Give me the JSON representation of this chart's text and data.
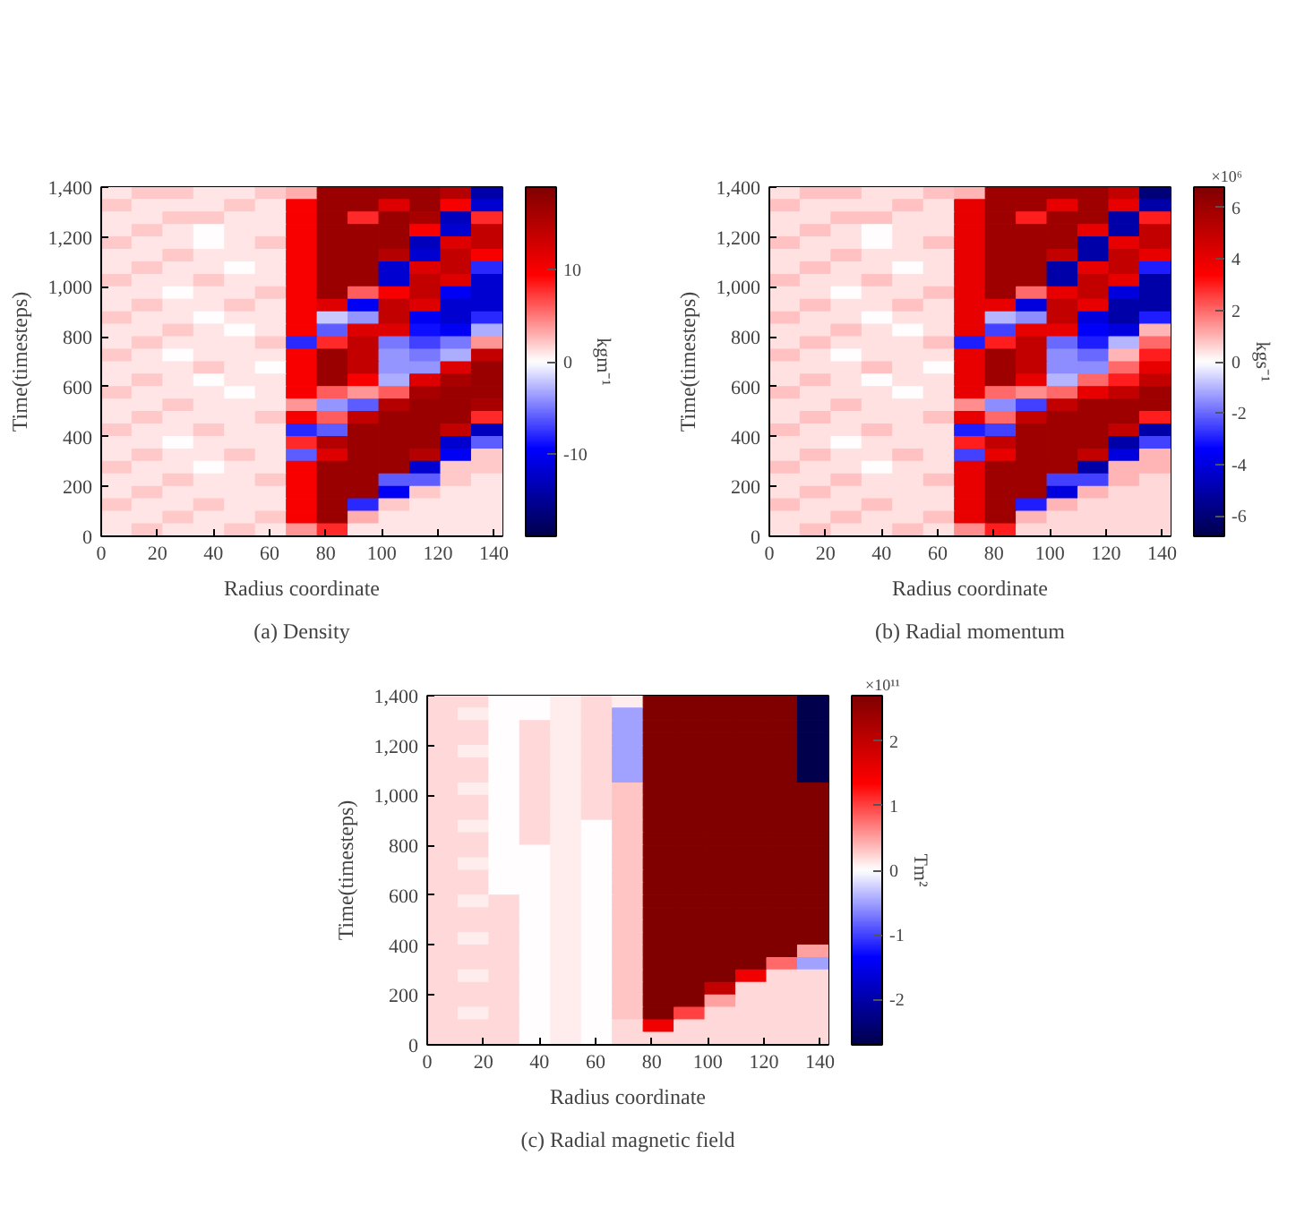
{
  "chart_data": [
    {
      "type": "heatmap",
      "title": "(a) Density",
      "xlabel": "Radius coordinate",
      "ylabel": "Time(timesteps)",
      "clabel": "kgm⁻¹",
      "xlim": [
        0,
        143
      ],
      "xticks": [
        0,
        20,
        40,
        60,
        80,
        100,
        120,
        140
      ],
      "ylim": [
        0,
        1400
      ],
      "yticks": [
        0,
        200,
        400,
        600,
        800,
        {
          "value": 1000,
          "label": "1,000"
        },
        {
          "value": 1200,
          "label": "1,200"
        },
        {
          "value": 1400,
          "label": "1,400"
        }
      ],
      "clim": [
        -19,
        19
      ],
      "cticks": [
        -10,
        0,
        10
      ],
      "cells": [
        [
          1,
          2,
          2,
          1,
          1,
          2,
          3,
          17,
          17,
          17,
          17,
          15,
          -14
        ],
        [
          2,
          1,
          1,
          1,
          2,
          1,
          10,
          17,
          17,
          12,
          17,
          10,
          -12
        ],
        [
          1,
          1,
          2,
          2,
          1,
          1,
          10,
          17,
          8,
          17,
          16,
          -13,
          8
        ],
        [
          1,
          2,
          1,
          0,
          1,
          1,
          10,
          17,
          17,
          17,
          10,
          -12,
          14
        ],
        [
          2,
          1,
          1,
          0,
          1,
          2,
          10,
          17,
          17,
          17,
          -13,
          12,
          14
        ],
        [
          1,
          1,
          2,
          1,
          1,
          1,
          10,
          17,
          17,
          15,
          -12,
          14,
          10
        ],
        [
          1,
          2,
          1,
          1,
          0,
          1,
          10,
          17,
          17,
          -12,
          12,
          14,
          -8
        ],
        [
          2,
          1,
          1,
          2,
          1,
          1,
          10,
          17,
          17,
          -12,
          14,
          12,
          -12
        ],
        [
          1,
          1,
          0,
          1,
          1,
          2,
          10,
          17,
          6,
          10,
          14,
          -10,
          -12
        ],
        [
          1,
          2,
          1,
          1,
          2,
          1,
          10,
          12,
          -10,
          14,
          12,
          -12,
          -12
        ],
        [
          2,
          1,
          1,
          0,
          1,
          1,
          10,
          -2,
          -4,
          14,
          -10,
          -12,
          -8
        ],
        [
          1,
          1,
          2,
          1,
          0,
          1,
          10,
          -6,
          12,
          12,
          -9,
          -10,
          -3
        ],
        [
          1,
          2,
          1,
          1,
          1,
          2,
          -8,
          8,
          14,
          -5,
          -7,
          -5,
          4
        ],
        [
          2,
          1,
          0,
          1,
          1,
          1,
          10,
          17,
          14,
          -4,
          -5,
          -3,
          14
        ],
        [
          1,
          1,
          1,
          2,
          1,
          0,
          10,
          17,
          14,
          -4,
          -4,
          12,
          17
        ],
        [
          1,
          2,
          1,
          0,
          1,
          1,
          10,
          17,
          10,
          -3,
          12,
          16,
          17
        ],
        [
          2,
          1,
          1,
          1,
          0,
          1,
          10,
          6,
          4,
          6,
          16,
          17,
          17
        ],
        [
          1,
          1,
          2,
          1,
          1,
          1,
          4,
          -4,
          -6,
          15,
          17,
          17,
          16
        ],
        [
          1,
          2,
          1,
          1,
          1,
          2,
          10,
          6,
          14,
          17,
          17,
          17,
          8
        ],
        [
          2,
          1,
          1,
          2,
          1,
          1,
          -8,
          -6,
          17,
          17,
          17,
          14,
          -13
        ],
        [
          1,
          1,
          0,
          1,
          1,
          1,
          8,
          15,
          17,
          17,
          17,
          -12,
          -6
        ],
        [
          1,
          2,
          1,
          1,
          2,
          1,
          -6,
          12,
          17,
          17,
          15,
          -10,
          2
        ],
        [
          2,
          1,
          1,
          0,
          1,
          1,
          10,
          17,
          17,
          17,
          -12,
          2,
          2
        ],
        [
          1,
          1,
          2,
          1,
          1,
          2,
          10,
          17,
          17,
          -6,
          -6,
          2,
          1
        ],
        [
          1,
          2,
          1,
          1,
          1,
          1,
          10,
          17,
          17,
          -10,
          2,
          1,
          1
        ],
        [
          2,
          1,
          1,
          2,
          1,
          1,
          10,
          17,
          -8,
          2,
          1,
          1,
          1
        ],
        [
          1,
          1,
          2,
          1,
          1,
          2,
          10,
          17,
          3,
          1,
          1,
          1,
          1
        ],
        [
          1,
          2,
          1,
          1,
          2,
          1,
          4,
          8,
          1,
          1,
          1,
          1,
          1
        ]
      ]
    },
    {
      "type": "heatmap",
      "title": "(b) Radial momentum",
      "xlabel": "Radius coordinate",
      "ylabel": "Time(timesteps)",
      "clabel": "kgs⁻¹",
      "annotations": [
        "×10⁶"
      ],
      "xlim": [
        0,
        143
      ],
      "xticks": [
        0,
        20,
        40,
        60,
        80,
        100,
        120,
        140
      ],
      "ylim": [
        0,
        1400
      ],
      "yticks": [
        0,
        200,
        400,
        600,
        800,
        {
          "value": 1000,
          "label": "1,000"
        },
        {
          "value": 1200,
          "label": "1,200"
        },
        {
          "value": 1400,
          "label": "1,400"
        }
      ],
      "clim": [
        -6.8,
        6.8
      ],
      "cticks": [
        -6,
        -4,
        -2,
        0,
        2,
        4,
        6
      ],
      "cells": [
        [
          0.4,
          0.8,
          0.8,
          0.4,
          0.4,
          0.8,
          1,
          6,
          6,
          6,
          6,
          5,
          -6
        ],
        [
          0.8,
          0.4,
          0.4,
          0.4,
          0.8,
          0.4,
          4,
          6,
          6,
          4,
          6,
          4,
          -5
        ],
        [
          0.4,
          0.4,
          0.8,
          0.8,
          0.4,
          0.4,
          4,
          6,
          3,
          6,
          6,
          -5,
          3
        ],
        [
          0.4,
          0.8,
          0.4,
          0,
          0.4,
          0.4,
          4,
          6,
          6,
          6,
          4,
          -5,
          5
        ],
        [
          0.8,
          0.4,
          0.4,
          0,
          0.4,
          0.8,
          4,
          6,
          6,
          6,
          -5,
          4,
          5
        ],
        [
          0.4,
          0.4,
          0.8,
          0.4,
          0.4,
          0.4,
          4,
          6,
          6,
          5,
          -5,
          5,
          4
        ],
        [
          0.4,
          0.8,
          0.4,
          0.4,
          0,
          0.4,
          4,
          6,
          6,
          -5,
          4,
          5,
          -3
        ],
        [
          0.8,
          0.4,
          0.4,
          0.8,
          0.4,
          0.4,
          4,
          6,
          6,
          -5,
          5,
          4,
          -5
        ],
        [
          0.4,
          0.4,
          0,
          0.4,
          0.4,
          0.8,
          4,
          6,
          2,
          4,
          5,
          -4,
          -5
        ],
        [
          0.4,
          0.8,
          0.4,
          0.4,
          0.8,
          0.4,
          4,
          4,
          -4,
          5,
          4,
          -5,
          -5
        ],
        [
          0.8,
          0.4,
          0.4,
          0,
          0.4,
          0.4,
          4,
          -1,
          -1.5,
          5,
          -4,
          -5,
          -3
        ],
        [
          0.4,
          0.4,
          0.8,
          0.4,
          0,
          0.4,
          4,
          -2.5,
          4,
          4,
          -3.5,
          -4,
          1
        ],
        [
          0.4,
          0.8,
          0.4,
          0.4,
          0.4,
          0.8,
          -3,
          3,
          5,
          -2,
          -3,
          -1,
          2
        ],
        [
          0.8,
          0.4,
          0,
          0.4,
          0.4,
          0.4,
          4,
          6,
          5,
          -1.5,
          -2,
          1,
          3
        ],
        [
          0.4,
          0.4,
          0.4,
          0.8,
          0.4,
          0,
          4,
          6,
          5,
          -1.5,
          -1.5,
          2,
          4
        ],
        [
          0.4,
          0.8,
          0.4,
          0,
          0.4,
          0.4,
          4,
          6,
          4,
          -1,
          2,
          3,
          5
        ],
        [
          0.8,
          0.4,
          0.4,
          0.4,
          0,
          0.4,
          4,
          2,
          1.5,
          2,
          4,
          5,
          6
        ],
        [
          0.4,
          0.4,
          0.8,
          0.4,
          0.4,
          0.4,
          1.5,
          -1.5,
          -2.5,
          5,
          6,
          6,
          6
        ],
        [
          0.4,
          0.8,
          0.4,
          0.4,
          0.4,
          0.8,
          4,
          2,
          5,
          6,
          6,
          6,
          3
        ],
        [
          0.8,
          0.4,
          0.4,
          0.8,
          0.4,
          0.4,
          -3,
          -2.5,
          6,
          6,
          6,
          5,
          -5
        ],
        [
          0.4,
          0.4,
          0,
          0.4,
          0.4,
          0.4,
          3,
          5,
          6,
          6,
          6,
          -5,
          -2.5
        ],
        [
          0.4,
          0.8,
          0.4,
          0.4,
          0.8,
          0.4,
          -2.5,
          4,
          6,
          6,
          5,
          -4,
          1
        ],
        [
          0.8,
          0.4,
          0.4,
          0,
          0.4,
          0.4,
          4,
          6,
          6,
          6,
          -5,
          1,
          1
        ],
        [
          0.4,
          0.4,
          0.8,
          0.4,
          0.4,
          0.8,
          4,
          6,
          6,
          -2.5,
          -2.5,
          1,
          0.5
        ],
        [
          0.4,
          0.8,
          0.4,
          0.4,
          0.4,
          0.4,
          4,
          6,
          6,
          -4,
          1,
          0.5,
          0.5
        ],
        [
          0.8,
          0.4,
          0.4,
          0.8,
          0.4,
          0.4,
          4,
          6,
          -3,
          1,
          0.5,
          0.5,
          0.5
        ],
        [
          0.4,
          0.4,
          0.8,
          0.4,
          0.4,
          0.8,
          4,
          6,
          1,
          0.5,
          0.5,
          0.5,
          0.5
        ],
        [
          0.4,
          0.8,
          0.4,
          0.4,
          0.8,
          0.4,
          1.5,
          3,
          0.5,
          0.5,
          0.5,
          0.5,
          0.5
        ]
      ]
    },
    {
      "type": "heatmap",
      "title": "(c) Radial magnetic field",
      "xlabel": "Radius coordinate",
      "ylabel": "Time(timesteps)",
      "clabel": "Tm²",
      "annotations": [
        "×10¹¹"
      ],
      "xlim": [
        0,
        143
      ],
      "xticks": [
        0,
        20,
        40,
        60,
        80,
        100,
        120,
        140
      ],
      "ylim": [
        0,
        1400
      ],
      "yticks": [
        0,
        200,
        400,
        600,
        800,
        {
          "value": 1000,
          "label": "1,000"
        },
        {
          "value": 1200,
          "label": "1,200"
        },
        {
          "value": 1400,
          "label": "1,400"
        }
      ],
      "clim": [
        -2.7,
        2.7
      ],
      "cticks": [
        -2,
        -1,
        0,
        1,
        2
      ],
      "cells": [
        [
          0.2,
          0.2,
          0,
          0,
          0.1,
          0.2,
          0.1,
          2.7,
          2.7,
          2.7,
          2.7,
          2.7,
          -2.7
        ],
        [
          0.2,
          0.1,
          0,
          0,
          0.1,
          0.2,
          -0.5,
          2.7,
          2.7,
          2.7,
          2.7,
          2.7,
          -2.7
        ],
        [
          0.2,
          0.2,
          0,
          0.2,
          0.1,
          0.2,
          -0.5,
          2.7,
          2.7,
          2.7,
          2.7,
          2.7,
          -2.7
        ],
        [
          0.2,
          0.2,
          0,
          0.2,
          0.1,
          0.2,
          -0.5,
          2.7,
          2.7,
          2.7,
          2.7,
          2.7,
          -2.7
        ],
        [
          0.2,
          0.1,
          0,
          0.2,
          0.1,
          0.2,
          -0.5,
          2.7,
          2.7,
          2.7,
          2.7,
          2.7,
          -2.7
        ],
        [
          0.2,
          0.2,
          0,
          0.2,
          0.1,
          0.2,
          -0.5,
          2.7,
          2.7,
          2.7,
          2.7,
          2.7,
          -2.7
        ],
        [
          0.2,
          0.2,
          0,
          0.2,
          0.1,
          0.2,
          -0.5,
          2.7,
          2.7,
          2.7,
          2.7,
          2.7,
          -2.7
        ],
        [
          0.2,
          0.1,
          0,
          0.2,
          0.1,
          0.2,
          0.3,
          2.7,
          2.7,
          2.7,
          2.7,
          2.7,
          2.7
        ],
        [
          0.2,
          0.2,
          0,
          0.2,
          0.1,
          0.2,
          0.3,
          2.7,
          2.7,
          2.7,
          2.7,
          2.7,
          2.7
        ],
        [
          0.2,
          0.2,
          0,
          0.2,
          0.1,
          0.2,
          0.3,
          2.7,
          2.7,
          2.7,
          2.7,
          2.7,
          2.7
        ],
        [
          0.2,
          0.1,
          0,
          0.2,
          0.1,
          0,
          0.3,
          2.7,
          2.7,
          2.7,
          2.7,
          2.7,
          2.7
        ],
        [
          0.2,
          0.2,
          0,
          0.2,
          0.1,
          0,
          0.3,
          2.7,
          2.7,
          2.7,
          2.7,
          2.7,
          2.7
        ],
        [
          0.2,
          0.2,
          0,
          0,
          0.1,
          0,
          0.3,
          2.7,
          2.7,
          2.7,
          2.7,
          2.7,
          2.7
        ],
        [
          0.2,
          0.1,
          0,
          0,
          0.1,
          0,
          0.3,
          2.7,
          2.7,
          2.7,
          2.7,
          2.7,
          2.7
        ],
        [
          0.2,
          0.2,
          0,
          0,
          0.1,
          0,
          0.3,
          2.7,
          2.7,
          2.7,
          2.7,
          2.7,
          2.7
        ],
        [
          0.2,
          0.2,
          0,
          0,
          0.1,
          0,
          0.3,
          2.7,
          2.7,
          2.7,
          2.7,
          2.7,
          2.7
        ],
        [
          0.2,
          0.1,
          0.2,
          0,
          0.1,
          0,
          0.3,
          2.7,
          2.7,
          2.7,
          2.7,
          2.7,
          2.7
        ],
        [
          0.2,
          0.2,
          0.2,
          0,
          0.1,
          0,
          0.3,
          2.7,
          2.7,
          2.7,
          2.7,
          2.7,
          2.7
        ],
        [
          0.2,
          0.2,
          0.2,
          0,
          0.1,
          0,
          0.3,
          2.7,
          2.7,
          2.7,
          2.7,
          2.7,
          2.7
        ],
        [
          0.2,
          0.1,
          0.2,
          0,
          0.1,
          0,
          0.3,
          2.7,
          2.7,
          2.7,
          2.7,
          2.7,
          2.7
        ],
        [
          0.2,
          0.2,
          0.2,
          0,
          0.1,
          0,
          0.3,
          2.7,
          2.7,
          2.7,
          2.7,
          2.7,
          0.5
        ],
        [
          0.2,
          0.2,
          0.2,
          0,
          0.1,
          0,
          0.3,
          2.7,
          2.7,
          2.7,
          2.7,
          0.8,
          -0.5
        ],
        [
          0.2,
          0.1,
          0.2,
          0,
          0.1,
          0,
          0.3,
          2.7,
          2.7,
          2.7,
          1.5,
          0.2,
          0.2
        ],
        [
          0.2,
          0.2,
          0.2,
          0,
          0.1,
          0,
          0.3,
          2.7,
          2.7,
          2,
          0.2,
          0.2,
          0.2
        ],
        [
          0.2,
          0.2,
          0.2,
          0,
          0.1,
          0,
          0.3,
          2.7,
          2.7,
          0.5,
          0.2,
          0.2,
          0.2
        ],
        [
          0.2,
          0.1,
          0.2,
          0,
          0.1,
          0,
          0.3,
          2.7,
          1,
          0.2,
          0.2,
          0.2,
          0.2
        ],
        [
          0.2,
          0.2,
          0.2,
          0,
          0.1,
          0,
          0.2,
          1.5,
          0.2,
          0.2,
          0.2,
          0.2,
          0.2
        ],
        [
          0.2,
          0.2,
          0.2,
          0,
          0.1,
          0,
          0.2,
          0.2,
          0.2,
          0.2,
          0.2,
          0.2,
          0.2
        ]
      ]
    }
  ]
}
